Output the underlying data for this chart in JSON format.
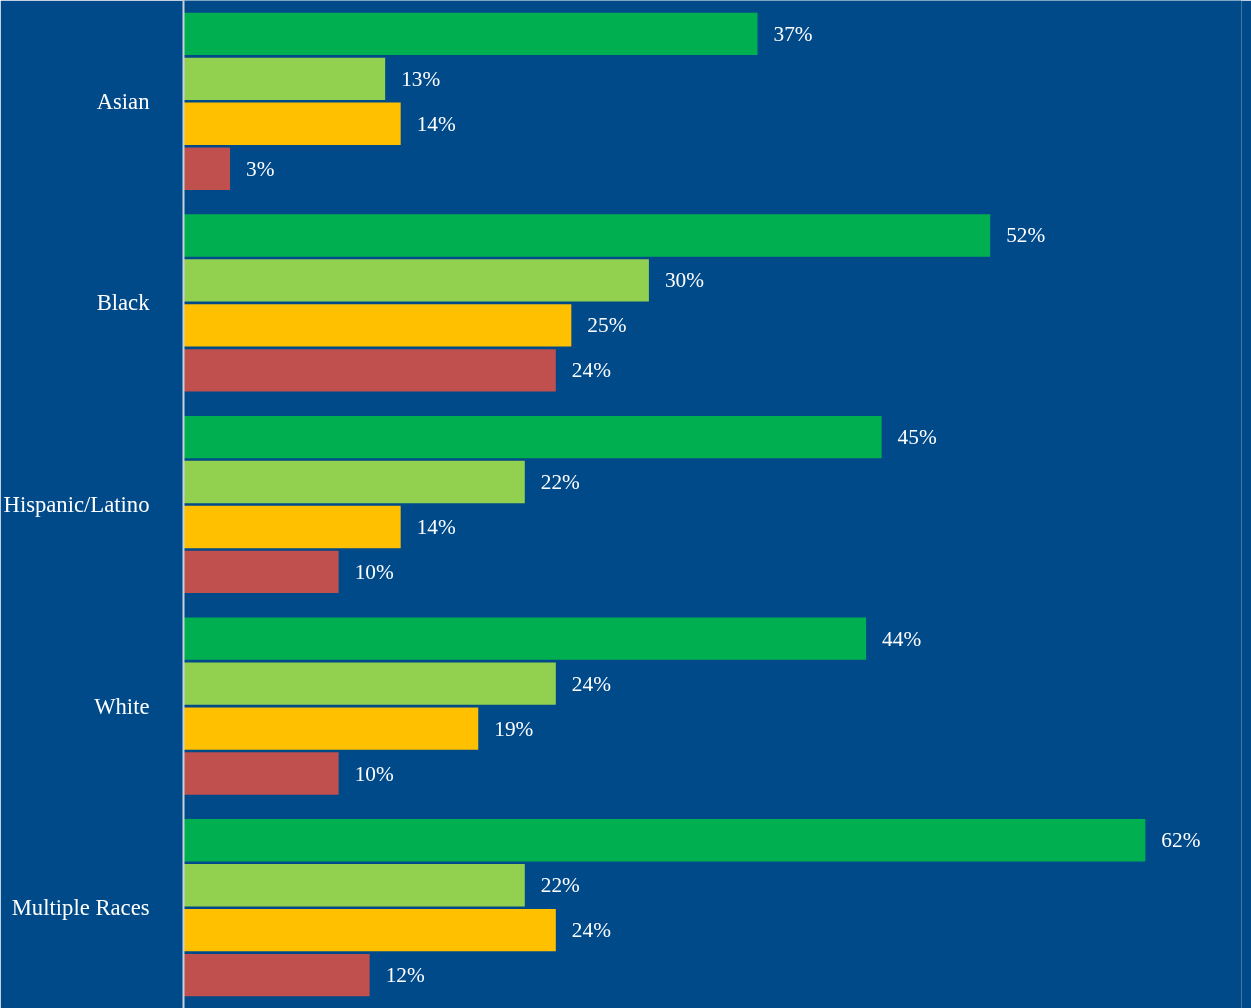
{
  "chart_data": {
    "type": "bar",
    "orientation": "horizontal",
    "categories": [
      "Asian",
      "Black",
      "Hispanic/Latino",
      "White",
      "Multiple Races"
    ],
    "series": [
      {
        "color": "#00b050",
        "values": [
          37,
          52,
          45,
          44,
          62
        ],
        "value_labels": [
          "37%",
          "52%",
          "45%",
          "44%",
          "62%"
        ]
      },
      {
        "color": "#92d050",
        "values": [
          13,
          30,
          22,
          24,
          22
        ],
        "value_labels": [
          "13%",
          "30%",
          "22%",
          "24%",
          "22%"
        ]
      },
      {
        "color": "#ffc000",
        "values": [
          14,
          25,
          14,
          19,
          24
        ],
        "value_labels": [
          "14%",
          "25%",
          "14%",
          "19%",
          "24%"
        ]
      },
      {
        "color": "#c0504d",
        "values": [
          3,
          24,
          10,
          10,
          12
        ],
        "value_labels": [
          "3%",
          "24%",
          "10%",
          "10%",
          "12%"
        ]
      }
    ],
    "tick_labels": "y"
  }
}
